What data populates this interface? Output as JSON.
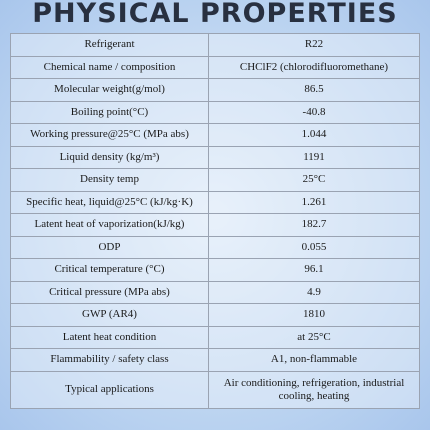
{
  "header": {
    "title": "PHYSICAL PROPERTIES"
  },
  "table": {
    "rows": [
      [
        "Refrigerant",
        "R22"
      ],
      [
        "Chemical name / composition",
        "CHClF2 (chlorodifluoromethane)"
      ],
      [
        "Molecular weight(g/mol)",
        "86.5"
      ],
      [
        "Boiling point(°C)",
        "-40.8"
      ],
      [
        "Working pressure@25°C (MPa abs)",
        "1.044"
      ],
      [
        "Liquid density (kg/m³)",
        "1191"
      ],
      [
        "Density temp",
        "25°C"
      ],
      [
        "Specific heat, liquid@25°C (kJ/kg·K)",
        "1.261"
      ],
      [
        "Latent heat of vaporization(kJ/kg)",
        "182.7"
      ],
      [
        "ODP",
        "0.055"
      ],
      [
        "Critical temperature (°C)",
        "96.1"
      ],
      [
        "Critical pressure (MPa abs)",
        "4.9"
      ],
      [
        "GWP (AR4)",
        "1810"
      ],
      [
        "Latent heat condition",
        "at 25°C"
      ],
      [
        "Flammability / safety class",
        "A1, non-flammable"
      ],
      [
        "Typical applications",
        "Air conditioning, refrigeration, industrial cooling, heating"
      ]
    ]
  }
}
